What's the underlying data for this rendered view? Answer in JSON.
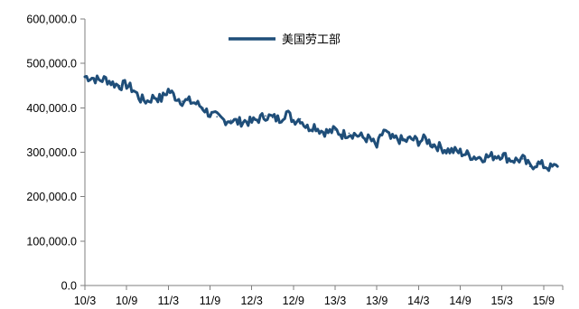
{
  "chart_data": {
    "type": "line",
    "title": "",
    "xlabel": "",
    "ylabel": "",
    "ylim": [
      0,
      600000
    ],
    "y_ticks": [
      0,
      100000,
      200000,
      300000,
      400000,
      500000,
      600000
    ],
    "y_tick_labels": [
      "0.0",
      "100,000.0",
      "200,000.0",
      "300,000.0",
      "400,000.0",
      "500,000.0",
      "600,000.0"
    ],
    "x_tick_labels": [
      "10/3",
      "10/9",
      "11/3",
      "11/9",
      "12/3",
      "12/9",
      "13/3",
      "13/9",
      "14/3",
      "14/9",
      "15/3",
      "15/9"
    ],
    "x_range": [
      "10/3",
      "15/11"
    ],
    "grid": false,
    "legend_position": "top-center",
    "color": "#1f4e79",
    "series": [
      {
        "name": "美国劳工部",
        "x": [
          "10/03",
          "10/04",
          "10/05",
          "10/06",
          "10/07",
          "10/08",
          "10/09",
          "10/10",
          "10/11",
          "10/12",
          "11/01",
          "11/02",
          "11/03",
          "11/04",
          "11/05",
          "11/06",
          "11/07",
          "11/08",
          "11/09",
          "11/10",
          "11/11",
          "11/12",
          "12/01",
          "12/02",
          "12/03",
          "12/04",
          "12/05",
          "12/06",
          "12/07",
          "12/08",
          "12/09",
          "12/10",
          "12/11",
          "12/12",
          "13/01",
          "13/02",
          "13/03",
          "13/04",
          "13/05",
          "13/06",
          "13/07",
          "13/08",
          "13/09",
          "13/10",
          "13/11",
          "13/12",
          "14/01",
          "14/02",
          "14/03",
          "14/04",
          "14/05",
          "14/06",
          "14/07",
          "14/08",
          "14/09",
          "14/10",
          "14/11",
          "14/12",
          "15/01",
          "15/02",
          "15/03",
          "15/04",
          "15/05",
          "15/06",
          "15/07",
          "15/08",
          "15/09",
          "15/10",
          "15/11"
        ],
        "values": [
          470000,
          468000,
          462000,
          465000,
          455000,
          450000,
          452000,
          440000,
          420000,
          415000,
          425000,
          420000,
          440000,
          425000,
          415000,
          415000,
          410000,
          400000,
          385000,
          380000,
          372000,
          372000,
          368000,
          370000,
          368000,
          375000,
          382000,
          378000,
          374000,
          390000,
          372000,
          375000,
          355000,
          360000,
          348000,
          345000,
          350000,
          340000,
          343000,
          340000,
          333000,
          330000,
          312000,
          350000,
          330000,
          330000,
          325000,
          330000,
          325000,
          330000,
          318000,
          312000,
          305000,
          303000,
          300000,
          295000,
          290000,
          288000,
          290000,
          292000,
          295000,
          285000,
          282000,
          285000,
          268000,
          275000,
          270000,
          265000,
          268000
        ]
      }
    ]
  }
}
